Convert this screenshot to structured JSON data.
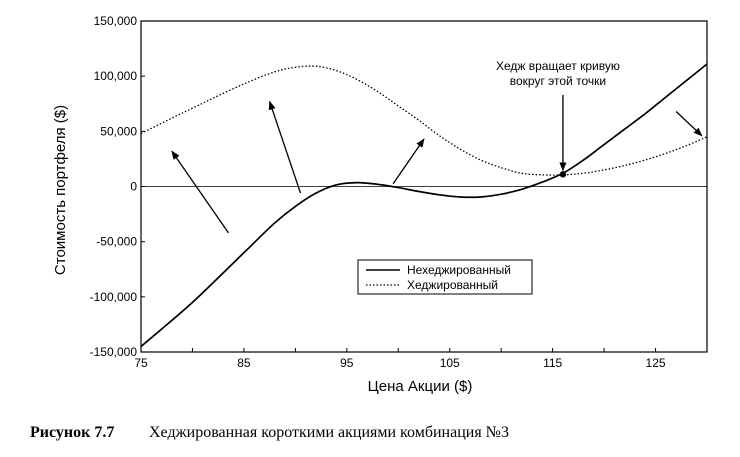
{
  "chart_data": {
    "type": "line",
    "xlabel": "Цена Акции ($)",
    "ylabel": "Стоимость портфеля ($)",
    "xlim": [
      75,
      130
    ],
    "ylim": [
      -150000,
      150000
    ],
    "x_ticks": [
      75,
      85,
      95,
      105,
      115,
      125
    ],
    "x_tick_labels": [
      "75",
      "85",
      "95",
      "105",
      "115",
      "125"
    ],
    "y_ticks": [
      150000,
      100000,
      50000,
      0,
      -50000,
      -100000,
      -150000
    ],
    "y_tick_labels": [
      "150,000",
      "100,000",
      "50,000",
      "0",
      "-50,000",
      "-100,000",
      "-150,000"
    ],
    "legend_position": "lower-center",
    "series": [
      {
        "name": "Нехеджированный",
        "style": "solid",
        "x": [
          75,
          80,
          85,
          88,
          90,
          92,
          94,
          96,
          98,
          100,
          102,
          104,
          106,
          108,
          110,
          112,
          114,
          116,
          118,
          120,
          122,
          124,
          126,
          128,
          130
        ],
        "y": [
          -145000,
          -105000,
          -60000,
          -33000,
          -18000,
          -6000,
          1500,
          3500,
          2000,
          -1000,
          -4500,
          -7500,
          -9500,
          -9500,
          -7000,
          -2500,
          4000,
          12000,
          24000,
          38000,
          52000,
          66000,
          81000,
          96000,
          111000
        ]
      },
      {
        "name": "Хеджированный",
        "style": "dotted",
        "x": [
          75,
          78,
          80,
          82,
          85,
          88,
          90,
          92,
          94,
          96,
          98,
          100,
          102,
          104,
          106,
          108,
          110,
          112,
          114,
          116,
          118,
          120,
          122,
          124,
          126,
          128,
          130
        ],
        "y": [
          48000,
          62000,
          71000,
          80000,
          93000,
          104000,
          108000,
          109000,
          105000,
          97000,
          86000,
          73000,
          60000,
          46000,
          34000,
          24000,
          17000,
          12000,
          10500,
          10500,
          12000,
          15000,
          19000,
          24000,
          30000,
          37000,
          45000
        ]
      }
    ],
    "annotation": {
      "lines": [
        "Хедж вращает кривую",
        "вокруг этой точки"
      ],
      "point": [
        116,
        11000
      ]
    },
    "arrows": [
      {
        "from": [
          83.5,
          -42000
        ],
        "to": [
          78,
          32000
        ]
      },
      {
        "from": [
          90.5,
          -6000
        ],
        "to": [
          87.5,
          77000
        ]
      },
      {
        "from": [
          99.5,
          2500
        ],
        "to": [
          102.5,
          43000
        ]
      },
      {
        "from": [
          127,
          68000
        ],
        "to": [
          129.5,
          46000
        ]
      }
    ]
  },
  "caption": {
    "label": "Рисунок 7.7",
    "text": "Хеджированная короткими акциями комбинация №3"
  }
}
